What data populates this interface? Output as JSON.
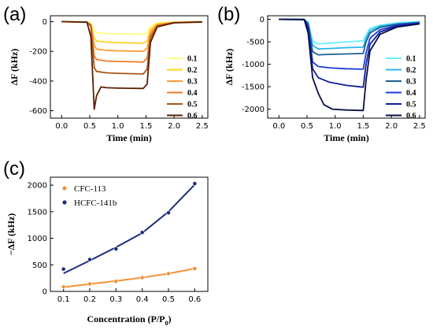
{
  "chart_data": [
    {
      "panel": "(a)",
      "type": "line",
      "xlabel": "Time (min)",
      "ylabel": "ΔF (kHz)",
      "xlim": [
        -0.2,
        2.6
      ],
      "ylim": [
        -650,
        40
      ],
      "xticks": [
        "0.0",
        "0.5",
        "1.0",
        "1.5",
        "2.0",
        "2.5"
      ],
      "yticks": [
        "0",
        "-200",
        "-400",
        "-600"
      ],
      "legend": "right",
      "series": [
        {
          "name": "0.1",
          "color": "#ffff80",
          "values": [
            [
              0,
              0
            ],
            [
              0.45,
              -3
            ],
            [
              0.52,
              -10
            ],
            [
              0.58,
              -60
            ],
            [
              0.62,
              -75
            ],
            [
              0.8,
              -80
            ],
            [
              1.0,
              -82
            ],
            [
              1.2,
              -83
            ],
            [
              1.45,
              -84
            ],
            [
              1.52,
              -75
            ],
            [
              1.58,
              -30
            ],
            [
              1.7,
              -8
            ],
            [
              2.0,
              -2
            ],
            [
              2.5,
              0
            ]
          ]
        },
        {
          "name": "0.2",
          "color": "#ffd21a",
          "values": [
            [
              0,
              0
            ],
            [
              0.45,
              -3
            ],
            [
              0.52,
              -15
            ],
            [
              0.58,
              -110
            ],
            [
              0.62,
              -130
            ],
            [
              0.8,
              -138
            ],
            [
              1.0,
              -141
            ],
            [
              1.2,
              -143
            ],
            [
              1.45,
              -145
            ],
            [
              1.52,
              -130
            ],
            [
              1.58,
              -50
            ],
            [
              1.7,
              -15
            ],
            [
              2.0,
              -4
            ],
            [
              2.5,
              -1
            ]
          ]
        },
        {
          "name": "0.3",
          "color": "#ff9d33",
          "values": [
            [
              0,
              0
            ],
            [
              0.45,
              -3
            ],
            [
              0.52,
              -20
            ],
            [
              0.58,
              -160
            ],
            [
              0.62,
              -185
            ],
            [
              0.8,
              -193
            ],
            [
              1.0,
              -196
            ],
            [
              1.2,
              -198
            ],
            [
              1.45,
              -200
            ],
            [
              1.52,
              -180
            ],
            [
              1.58,
              -70
            ],
            [
              1.7,
              -20
            ],
            [
              2.0,
              -5
            ],
            [
              2.5,
              -1
            ]
          ]
        },
        {
          "name": "0.4",
          "color": "#f07a2a",
          "values": [
            [
              0,
              0
            ],
            [
              0.45,
              -3
            ],
            [
              0.52,
              -25
            ],
            [
              0.58,
              -230
            ],
            [
              0.62,
              -255
            ],
            [
              0.8,
              -265
            ],
            [
              1.0,
              -268
            ],
            [
              1.2,
              -270
            ],
            [
              1.45,
              -272
            ],
            [
              1.52,
              -245
            ],
            [
              1.58,
              -90
            ],
            [
              1.7,
              -25
            ],
            [
              2.0,
              -6
            ],
            [
              2.5,
              -1
            ]
          ]
        },
        {
          "name": "0.5",
          "color": "#a85518",
          "values": [
            [
              0,
              0
            ],
            [
              0.45,
              -3
            ],
            [
              0.52,
              -30
            ],
            [
              0.58,
              -310
            ],
            [
              0.62,
              -335
            ],
            [
              0.8,
              -345
            ],
            [
              1.0,
              -348
            ],
            [
              1.2,
              -350
            ],
            [
              1.45,
              -352
            ],
            [
              1.52,
              -320
            ],
            [
              1.58,
              -110
            ],
            [
              1.7,
              -30
            ],
            [
              2.0,
              -7
            ],
            [
              2.5,
              -2
            ]
          ]
        },
        {
          "name": "0.6",
          "color": "#5a1f00",
          "values": [
            [
              0,
              0
            ],
            [
              0.45,
              -3
            ],
            [
              0.52,
              -100
            ],
            [
              0.58,
              -590
            ],
            [
              0.62,
              -500
            ],
            [
              0.7,
              -440
            ],
            [
              0.8,
              -445
            ],
            [
              1.0,
              -448
            ],
            [
              1.2,
              -449
            ],
            [
              1.45,
              -450
            ],
            [
              1.52,
              -420
            ],
            [
              1.58,
              -140
            ],
            [
              1.7,
              -35
            ],
            [
              2.0,
              -8
            ],
            [
              2.5,
              -2
            ]
          ]
        }
      ]
    },
    {
      "panel": "(b)",
      "type": "line",
      "xlabel": "Time (min)",
      "ylabel": "ΔF (kHz)",
      "xlim": [
        -0.2,
        2.6
      ],
      "ylim": [
        -2200,
        80
      ],
      "xticks": [
        "0.0",
        "0.5",
        "1.0",
        "1.5",
        "2.0",
        "2.5"
      ],
      "yticks": [
        "0",
        "-500",
        "-1000",
        "-1500",
        "-2000"
      ],
      "legend": "right",
      "series": [
        {
          "name": "0.1",
          "color": "#66f0ff",
          "values": [
            [
              0,
              0
            ],
            [
              0.45,
              -5
            ],
            [
              0.52,
              -60
            ],
            [
              0.6,
              -480
            ],
            [
              0.7,
              -550
            ],
            [
              0.9,
              -530
            ],
            [
              1.2,
              -500
            ],
            [
              1.5,
              -480
            ],
            [
              1.55,
              -350
            ],
            [
              1.62,
              -200
            ],
            [
              1.8,
              -130
            ],
            [
              2.1,
              -80
            ],
            [
              2.5,
              -50
            ]
          ]
        },
        {
          "name": "0.2",
          "color": "#2ab8e6",
          "values": [
            [
              0,
              0
            ],
            [
              0.45,
              -5
            ],
            [
              0.52,
              -80
            ],
            [
              0.6,
              -580
            ],
            [
              0.7,
              -660
            ],
            [
              0.9,
              -650
            ],
            [
              1.2,
              -630
            ],
            [
              1.5,
              -620
            ],
            [
              1.55,
              -420
            ],
            [
              1.62,
              -250
            ],
            [
              1.8,
              -150
            ],
            [
              2.1,
              -95
            ],
            [
              2.5,
              -60
            ]
          ]
        },
        {
          "name": "0.3",
          "color": "#1b5f90",
          "values": [
            [
              0,
              0
            ],
            [
              0.45,
              -5
            ],
            [
              0.52,
              -100
            ],
            [
              0.6,
              -720
            ],
            [
              0.7,
              -790
            ],
            [
              0.9,
              -780
            ],
            [
              1.2,
              -770
            ],
            [
              1.5,
              -760
            ],
            [
              1.55,
              -500
            ],
            [
              1.62,
              -300
            ],
            [
              1.8,
              -180
            ],
            [
              2.1,
              -110
            ],
            [
              2.5,
              -70
            ]
          ]
        },
        {
          "name": "0.4",
          "color": "#1f3bd6",
          "values": [
            [
              0,
              0
            ],
            [
              0.45,
              -5
            ],
            [
              0.52,
              -150
            ],
            [
              0.6,
              -950
            ],
            [
              0.7,
              -1050
            ],
            [
              0.9,
              -1080
            ],
            [
              1.2,
              -1100
            ],
            [
              1.5,
              -1110
            ],
            [
              1.55,
              -750
            ],
            [
              1.62,
              -420
            ],
            [
              1.8,
              -230
            ],
            [
              2.1,
              -130
            ],
            [
              2.5,
              -80
            ]
          ]
        },
        {
          "name": "0.5",
          "color": "#0d1f9a",
          "values": [
            [
              0,
              0
            ],
            [
              0.45,
              -5
            ],
            [
              0.52,
              -200
            ],
            [
              0.6,
              -1100
            ],
            [
              0.7,
              -1300
            ],
            [
              0.9,
              -1400
            ],
            [
              1.2,
              -1470
            ],
            [
              1.5,
              -1510
            ],
            [
              1.55,
              -1000
            ],
            [
              1.62,
              -550
            ],
            [
              1.8,
              -280
            ],
            [
              2.1,
              -150
            ],
            [
              2.5,
              -90
            ]
          ]
        },
        {
          "name": "0.6",
          "color": "#0a0f45",
          "values": [
            [
              0,
              0
            ],
            [
              0.45,
              -5
            ],
            [
              0.52,
              -300
            ],
            [
              0.6,
              -1300
            ],
            [
              0.7,
              -1650
            ],
            [
              0.8,
              -1900
            ],
            [
              0.95,
              -2000
            ],
            [
              1.2,
              -2020
            ],
            [
              1.5,
              -2030
            ],
            [
              1.55,
              -1350
            ],
            [
              1.62,
              -700
            ],
            [
              1.8,
              -330
            ],
            [
              2.1,
              -170
            ],
            [
              2.5,
              -100
            ]
          ]
        }
      ]
    },
    {
      "panel": "(c)",
      "type": "scatter",
      "xlabel": "Concentration (P/P",
      "xlabel_sub": "0",
      "xlabel_end": ")",
      "ylabel": "−ΔF (kHz)",
      "xlim": [
        0.05,
        0.65
      ],
      "ylim": [
        0,
        2150
      ],
      "xticks": [
        "0.1",
        "0.2",
        "0.3",
        "0.4",
        "0.5",
        "0.6"
      ],
      "yticks": [
        "0",
        "500",
        "1000",
        "1500",
        "2000"
      ],
      "legend": "top-left",
      "series": [
        {
          "name": "CFC-113",
          "color": "#f39237",
          "x": [
            0.1,
            0.2,
            0.3,
            0.4,
            0.5,
            0.6
          ],
          "values": [
            85,
            140,
            190,
            260,
            335,
            430
          ],
          "fit": [
            [
              0.1,
              80
            ],
            [
              0.2,
              140
            ],
            [
              0.3,
              195
            ],
            [
              0.4,
              260
            ],
            [
              0.5,
              335
            ],
            [
              0.6,
              430
            ]
          ]
        },
        {
          "name": "HCFC-141b",
          "color": "#1c2c7e",
          "x": [
            0.1,
            0.2,
            0.3,
            0.4,
            0.5,
            0.6
          ],
          "values": [
            420,
            600,
            800,
            1110,
            1480,
            2030
          ],
          "fit": [
            [
              0.1,
              340
            ],
            [
              0.2,
              580
            ],
            [
              0.3,
              830
            ],
            [
              0.4,
              1100
            ],
            [
              0.5,
              1500
            ],
            [
              0.6,
              2010
            ]
          ]
        }
      ]
    }
  ],
  "panels": {
    "a": {
      "letter": "(a)"
    },
    "b": {
      "letter": "(b)"
    },
    "c": {
      "letter": "(c)"
    }
  }
}
